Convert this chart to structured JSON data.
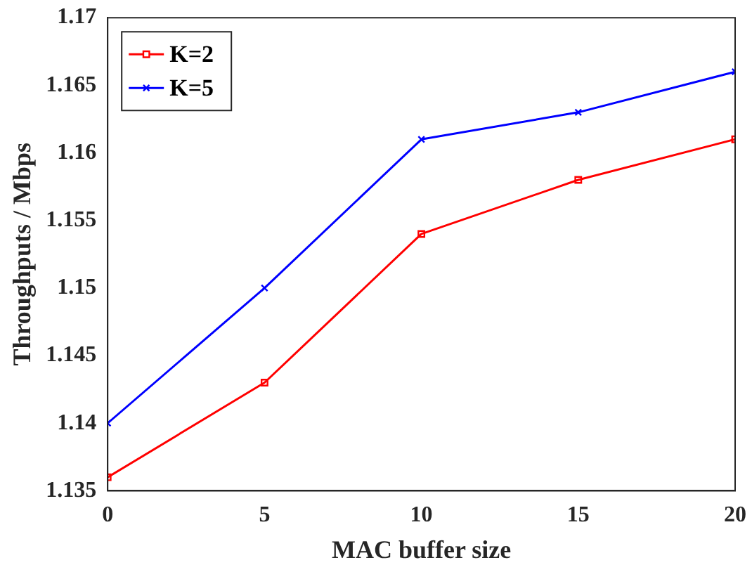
{
  "chart_data": {
    "type": "line",
    "xlabel": "MAC buffer size",
    "ylabel": "Throughputs / Mbps",
    "x": [
      0,
      5,
      10,
      15,
      20
    ],
    "series": [
      {
        "name": "K=2",
        "color": "#ff0000",
        "marker": "square",
        "values": [
          1.136,
          1.143,
          1.154,
          1.158,
          1.161
        ]
      },
      {
        "name": "K=5",
        "color": "#0000ff",
        "marker": "cross",
        "values": [
          1.14,
          1.15,
          1.161,
          1.163,
          1.166
        ]
      }
    ],
    "xlim": [
      0,
      20
    ],
    "xticks": [
      0,
      5,
      10,
      15,
      20
    ],
    "ylim": [
      1.135,
      1.17
    ],
    "yticks": [
      1.135,
      1.14,
      1.145,
      1.15,
      1.155,
      1.16,
      1.165,
      1.17
    ],
    "grid": false,
    "legend": "top left",
    "line_style": "solid"
  }
}
